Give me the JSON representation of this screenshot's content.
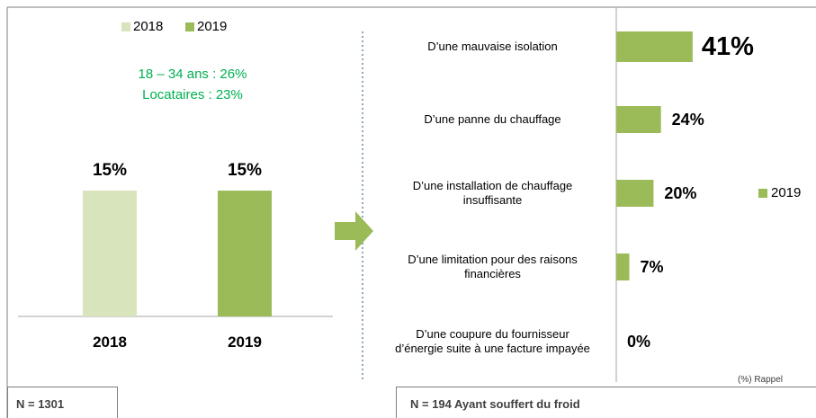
{
  "chart_data": [
    {
      "type": "bar",
      "categories": [
        "2018",
        "2019"
      ],
      "series": [
        {
          "name": "2018",
          "color": "#d8e4bc",
          "values": [
            15,
            null
          ],
          "value_labels": [
            "15%",
            null
          ]
        },
        {
          "name": "2019",
          "color": "#9bbb59",
          "values": [
            null,
            15
          ],
          "value_labels": [
            null,
            "15%"
          ]
        }
      ],
      "annotations": [
        "18 – 34 ans : 26%",
        "Locataires : 23%"
      ],
      "annotation_color": "#00b050",
      "footnote": "N = 1301"
    },
    {
      "type": "hbar",
      "categories": [
        "D’une mauvaise isolation",
        "D’une panne du chauffage",
        "D’une installation de chauffage\ninsuffisante",
        "D’une limitation pour des raisons\nfinancières",
        "D’une coupure du fournisseur\nd’énergie suite à une facture impayée"
      ],
      "series": [
        {
          "name": "2019",
          "color": "#9bbb59",
          "values": [
            41,
            24,
            20,
            7,
            0
          ],
          "value_labels": [
            "41%",
            "24%",
            "20%",
            "7%",
            "0%"
          ]
        }
      ],
      "note": "(%) Rappel",
      "footnote": "N = 194 Ayant souffert du froid"
    }
  ]
}
